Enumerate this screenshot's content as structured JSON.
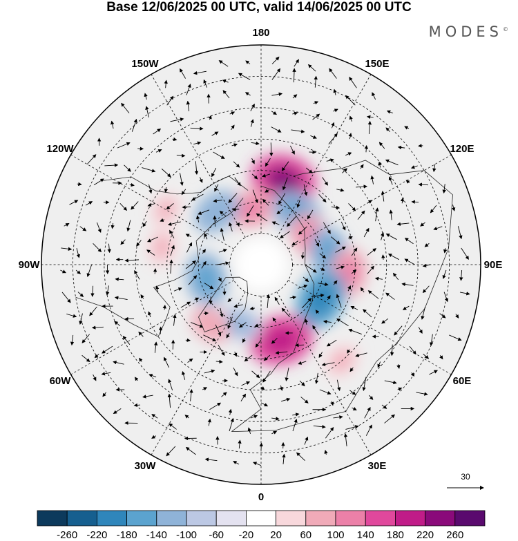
{
  "title": "Base 12/06/2025 00 UTC, valid 14/06/2025 00 UTC",
  "brand": "MODES",
  "brand_mark": "©",
  "longitude_labels": [
    {
      "text": "180",
      "lon": 180
    },
    {
      "text": "150E",
      "lon": 150
    },
    {
      "text": "120E",
      "lon": 120
    },
    {
      "text": "90E",
      "lon": 90
    },
    {
      "text": "60E",
      "lon": 60
    },
    {
      "text": "30E",
      "lon": 30
    },
    {
      "text": "0",
      "lon": 0
    },
    {
      "text": "30W",
      "lon": -30
    },
    {
      "text": "60W",
      "lon": -60
    },
    {
      "text": "90W",
      "lon": -90
    },
    {
      "text": "120W",
      "lon": -120
    },
    {
      "text": "150W",
      "lon": -150
    }
  ],
  "latitude_circles": [
    80,
    70,
    60,
    50,
    40,
    30
  ],
  "reference_vector_label": "30",
  "colorbar": {
    "ticks": [
      "-260",
      "-220",
      "-180",
      "-140",
      "-100",
      "-60",
      "-20",
      "20",
      "60",
      "100",
      "140",
      "180",
      "220",
      "260"
    ],
    "colors": [
      "#0d3a5c",
      "#165f8f",
      "#2f86bb",
      "#5ba3cf",
      "#8fb3d8",
      "#bcc8e4",
      "#e4e2f0",
      "#ffffff",
      "#f8d8dc",
      "#f0aab8",
      "#ec80a8",
      "#e0489c",
      "#c01c88",
      "#8a0a7a",
      "#5a0a6e"
    ]
  },
  "anomaly_blobs": [
    {
      "lon": 165,
      "lat": 62,
      "value": 170
    },
    {
      "lon": -170,
      "lat": 72,
      "value": 100
    },
    {
      "lon": 145,
      "lat": 70,
      "value": -120
    },
    {
      "lon": 120,
      "lat": 72,
      "value": 100
    },
    {
      "lon": 100,
      "lat": 68,
      "value": -110
    },
    {
      "lon": 85,
      "lat": 62,
      "value": 100
    },
    {
      "lon": 60,
      "lat": 68,
      "value": -150
    },
    {
      "lon": 15,
      "lat": 65,
      "value": 160
    },
    {
      "lon": -20,
      "lat": 70,
      "value": -80
    },
    {
      "lon": -40,
      "lat": 65,
      "value": 70
    },
    {
      "lon": -75,
      "lat": 72,
      "value": -120
    },
    {
      "lon": -100,
      "lat": 58,
      "value": 60
    },
    {
      "lon": -140,
      "lat": 68,
      "value": -100
    },
    {
      "lon": -120,
      "lat": 55,
      "value": 50
    },
    {
      "lon": 40,
      "lat": 50,
      "value": 60
    }
  ]
}
